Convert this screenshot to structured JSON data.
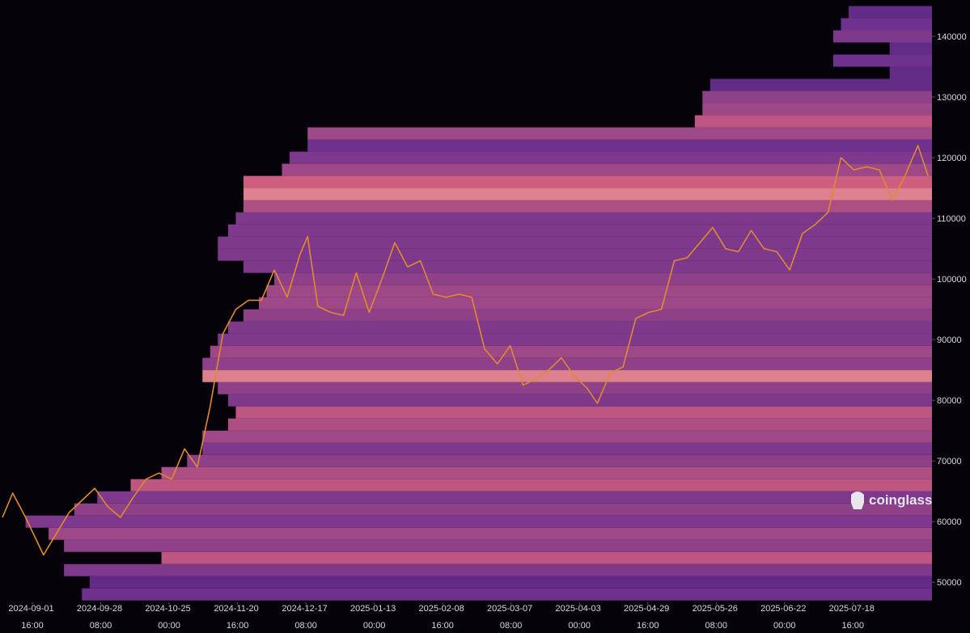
{
  "chart_data": {
    "type": "heatmap",
    "watermark": "coinglass",
    "background": "#05020a",
    "color": "#e08a2e",
    "colorscale": [
      "#1c0a33",
      "#6a2f8f",
      "#d2607e",
      "#ffe2c0"
    ],
    "xlim": [
      "2024-08-20 01:00",
      "2025-08-18 12:00"
    ],
    "ylim": [
      46700,
      146000
    ],
    "yticks": [
      50000,
      60000,
      70000,
      80000,
      90000,
      100000,
      110000,
      120000,
      130000,
      140000
    ],
    "xticks": [
      "2024-09-01 16:00",
      "2024-09-28 08:00",
      "2024-10-25 00:00",
      "2024-11-20 16:00",
      "2024-12-17 08:00",
      "2025-01-13 00:00",
      "2025-02-08 16:00",
      "2025-03-07 08:00",
      "2025-04-03 00:00",
      "2025-04-29 16:00",
      "2025-05-26 08:00",
      "2025-06-22 00:00",
      "2025-07-18 16:00"
    ],
    "x": [
      "2024-08-21",
      "2024-08-25",
      "2024-08-30",
      "2024-09-06",
      "2024-09-11",
      "2024-09-16",
      "2024-09-21",
      "2024-09-26",
      "2024-10-01",
      "2024-10-06",
      "2024-10-11",
      "2024-10-16",
      "2024-10-21",
      "2024-10-26",
      "2024-10-31",
      "2024-11-05",
      "2024-11-10",
      "2024-11-15",
      "2024-11-20",
      "2024-11-25",
      "2024-11-30",
      "2024-12-05",
      "2024-12-10",
      "2024-12-15",
      "2024-12-18",
      "2024-12-22",
      "2024-12-27",
      "2025-01-01",
      "2025-01-06",
      "2025-01-11",
      "2025-01-16",
      "2025-01-21",
      "2025-01-26",
      "2025-01-31",
      "2025-02-05",
      "2025-02-10",
      "2025-02-15",
      "2025-02-20",
      "2025-02-25",
      "2025-03-02",
      "2025-03-07",
      "2025-03-12",
      "2025-03-17",
      "2025-03-22",
      "2025-03-27",
      "2025-04-01",
      "2025-04-06",
      "2025-04-10",
      "2025-04-15",
      "2025-04-20",
      "2025-04-25",
      "2025-04-30",
      "2025-05-05",
      "2025-05-10",
      "2025-05-15",
      "2025-05-20",
      "2025-05-25",
      "2025-05-30",
      "2025-06-04",
      "2025-06-09",
      "2025-06-14",
      "2025-06-19",
      "2025-06-24",
      "2025-06-29",
      "2025-07-04",
      "2025-07-09",
      "2025-07-14",
      "2025-07-19",
      "2025-07-24",
      "2025-07-29",
      "2025-08-03",
      "2025-08-08",
      "2025-08-13",
      "2025-08-17"
    ],
    "values": [
      60700,
      64700,
      60700,
      54500,
      58000,
      61500,
      63500,
      65500,
      62500,
      60700,
      64000,
      67000,
      68000,
      67000,
      72000,
      69000,
      79000,
      91000,
      95000,
      96500,
      96500,
      101500,
      97000,
      104000,
      107000,
      95500,
      94500,
      94000,
      101000,
      94500,
      100000,
      106000,
      102000,
      103000,
      97500,
      97000,
      97500,
      97000,
      88500,
      86000,
      89000,
      82500,
      83500,
      85000,
      87000,
      84000,
      82000,
      79500,
      84500,
      85500,
      93500,
      94500,
      95000,
      103000,
      103500,
      106000,
      108500,
      105000,
      104500,
      108000,
      105000,
      104500,
      101500,
      107500,
      109000,
      111000,
      120000,
      118000,
      118500,
      118000,
      113000,
      117000,
      122000,
      117000
    ],
    "heatmap": {
      "band": 2000,
      "levels": [
        48000,
        50000,
        52000,
        54000,
        56000,
        58000,
        60000,
        62000,
        64000,
        66000,
        68000,
        70000,
        72000,
        74000,
        76000,
        78000,
        80000,
        82000,
        84000,
        86000,
        88000,
        90000,
        92000,
        94000,
        96000,
        98000,
        100000,
        102000,
        104000,
        106000,
        108000,
        110000,
        112000,
        114000,
        116000,
        118000,
        120000,
        122000,
        124000,
        126000,
        128000,
        130000,
        132000,
        134000,
        136000,
        138000,
        140000,
        142000,
        144000
      ],
      "starts": [
        "2024-09-21",
        "2024-09-24",
        "2024-09-14",
        "2024-10-22",
        "2024-09-14",
        "2024-09-08",
        "2024-08-30",
        "2024-09-18",
        "2024-09-27",
        "2024-10-10",
        "2024-10-22",
        "2024-11-01",
        "2024-11-07",
        "2024-11-07",
        "2024-11-17",
        "2024-11-20",
        "2024-11-17",
        "2024-11-13",
        "2024-11-07",
        "2024-11-07",
        "2024-11-10",
        "2024-11-13",
        "2024-11-17",
        "2024-11-23",
        "2024-11-29",
        "2024-12-02",
        "2024-12-05",
        "2024-11-23",
        "2024-11-13",
        "2024-11-13",
        "2024-11-17",
        "2024-11-20",
        "2024-11-23",
        "2024-11-23",
        "2024-11-23",
        "2024-12-08",
        "2024-12-11",
        "2024-12-18",
        "2024-12-18",
        "2025-05-18",
        "2025-05-21",
        "2025-05-21",
        "2025-05-24",
        "2025-08-02",
        "2025-07-11",
        "2025-08-02",
        "2025-07-11",
        "2025-07-14",
        "2025-07-17"
      ],
      "intensity": [
        0.35,
        0.3,
        0.4,
        0.6,
        0.45,
        0.5,
        0.4,
        0.45,
        0.4,
        0.6,
        0.55,
        0.45,
        0.4,
        0.5,
        0.55,
        0.6,
        0.4,
        0.45,
        0.75,
        0.45,
        0.5,
        0.4,
        0.4,
        0.45,
        0.5,
        0.5,
        0.45,
        0.4,
        0.4,
        0.4,
        0.4,
        0.4,
        0.55,
        0.75,
        0.65,
        0.5,
        0.4,
        0.35,
        0.5,
        0.6,
        0.5,
        0.45,
        0.3,
        0.3,
        0.35,
        0.3,
        0.4,
        0.35,
        0.3
      ]
    }
  }
}
